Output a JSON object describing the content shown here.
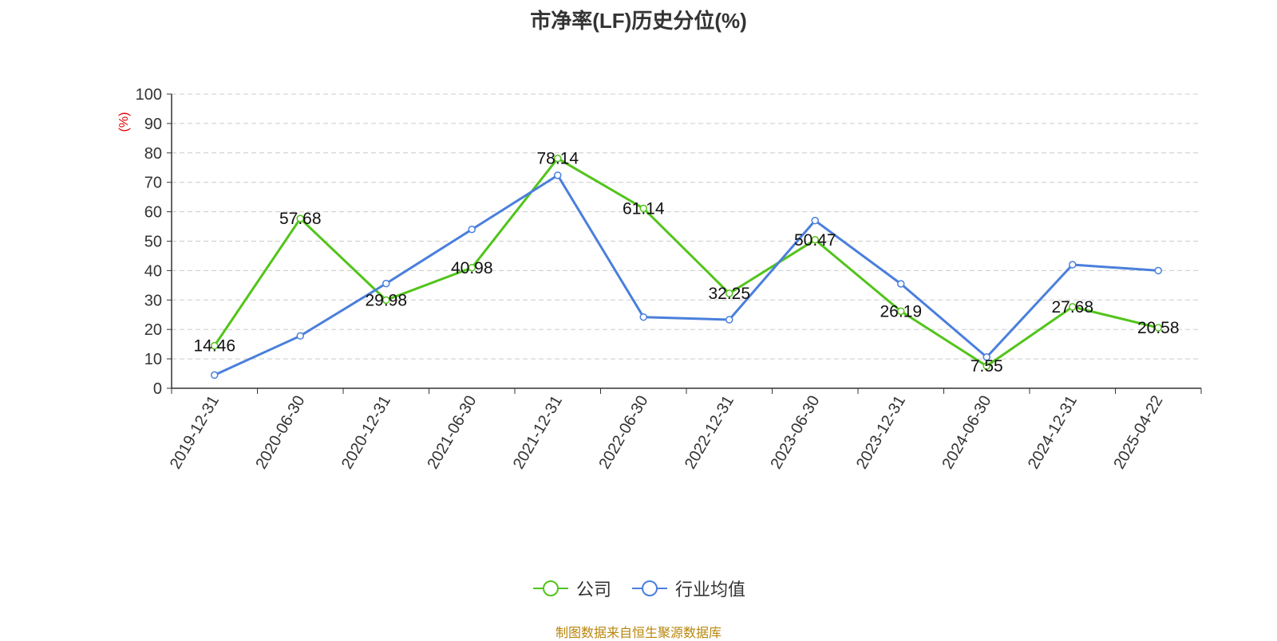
{
  "chart_data": {
    "type": "line",
    "title": "市净率(LF)历史分位(%)",
    "ylabel": "(%)",
    "ylim": [
      0,
      100
    ],
    "yticks": [
      0,
      10,
      20,
      30,
      40,
      50,
      60,
      70,
      80,
      90,
      100
    ],
    "grid": true,
    "legend_position": "bottom-center",
    "categories": [
      "2019-12-31",
      "2020-06-30",
      "2020-12-31",
      "2021-06-30",
      "2021-12-31",
      "2022-06-30",
      "2022-12-31",
      "2023-06-30",
      "2023-12-31",
      "2024-06-30",
      "2024-12-31",
      "2025-04-22"
    ],
    "series": [
      {
        "name": "公司",
        "color": "#52c41a",
        "values": [
          14.46,
          57.68,
          29.98,
          40.98,
          78.14,
          61.14,
          32.25,
          50.47,
          26.19,
          7.55,
          27.68,
          20.58
        ],
        "show_labels": true
      },
      {
        "name": "行业均值",
        "color": "#4a7fdc",
        "values": [
          4.5,
          17.8,
          35.6,
          54.0,
          72.4,
          24.2,
          23.3,
          57.0,
          35.5,
          10.6,
          42.0,
          40.0
        ],
        "show_labels": false
      }
    ]
  },
  "source_note": "制图数据来自恒生聚源数据库"
}
